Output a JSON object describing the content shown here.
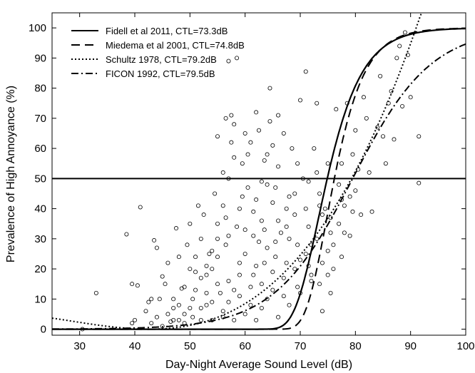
{
  "chart_data": {
    "type": "scatter",
    "xlabel": "Day-Night Average Sound Level (dB)",
    "ylabel": "Prevalence of High Annoyance (%)",
    "xlim": [
      25,
      100
    ],
    "ylim": [
      -2,
      105
    ],
    "x_ticks": [
      30,
      40,
      50,
      60,
      70,
      80,
      90,
      100
    ],
    "y_ticks": [
      0,
      10,
      20,
      30,
      40,
      50,
      60,
      70,
      80,
      90,
      100
    ],
    "grid": false,
    "legend_position": "top-left",
    "reference_line": {
      "y": 50
    },
    "curves": [
      {
        "name": "Fidell et al 2011, CTL=73.3dB",
        "style": "solid",
        "ctl": 73.3
      },
      {
        "name": "Miedema et al 2001, CTL=74.8dB",
        "style": "dashed",
        "ctl": 74.8
      },
      {
        "name": "Schultz 1978, CTL=79.2dB",
        "style": "dotted",
        "ctl": 79.2
      },
      {
        "name": "FICON 1992, CTL=79.5dB",
        "style": "dashdot",
        "ctl": 79.5
      }
    ],
    "scatter": [
      [
        30.5,
        0
      ],
      [
        33,
        12
      ],
      [
        38.5,
        31.5
      ],
      [
        39.5,
        15
      ],
      [
        41,
        40.5
      ],
      [
        40.5,
        14.5
      ],
      [
        42.5,
        9
      ],
      [
        43,
        10
      ],
      [
        43.5,
        29.5
      ],
      [
        44,
        27
      ],
      [
        44.5,
        10
      ],
      [
        45,
        17.5
      ],
      [
        45.5,
        15
      ],
      [
        46,
        22
      ],
      [
        46.5,
        2.5
      ],
      [
        47,
        10
      ],
      [
        47.5,
        33.5
      ],
      [
        48,
        24
      ],
      [
        48.5,
        13.5
      ],
      [
        49,
        5
      ],
      [
        49.5,
        28
      ],
      [
        50,
        35
      ],
      [
        50.5,
        10
      ],
      [
        51,
        19
      ],
      [
        51.5,
        41
      ],
      [
        52,
        30
      ],
      [
        52.5,
        38
      ],
      [
        53,
        8
      ],
      [
        53.5,
        25
      ],
      [
        54,
        20
      ],
      [
        54.5,
        45
      ],
      [
        55,
        64
      ],
      [
        55,
        35
      ],
      [
        55.5,
        12
      ],
      [
        56,
        52
      ],
      [
        56.5,
        70
      ],
      [
        56.5,
        28
      ],
      [
        57,
        89
      ],
      [
        57,
        16
      ],
      [
        57.5,
        71
      ],
      [
        58,
        68
      ],
      [
        58.5,
        90
      ],
      [
        59,
        40
      ],
      [
        59,
        22
      ],
      [
        59.5,
        55
      ],
      [
        60,
        33
      ],
      [
        60.5,
        47
      ],
      [
        61,
        62
      ],
      [
        61.5,
        18
      ],
      [
        62,
        72
      ],
      [
        62.5,
        29
      ],
      [
        63,
        36
      ],
      [
        63.5,
        56
      ],
      [
        64,
        48
      ],
      [
        64.5,
        80
      ],
      [
        65,
        42
      ],
      [
        65.5,
        24
      ],
      [
        66,
        54
      ],
      [
        66.5,
        32
      ],
      [
        67,
        65
      ],
      [
        67.5,
        22
      ],
      [
        68,
        44
      ],
      [
        68.5,
        60
      ],
      [
        69,
        38
      ],
      [
        69.5,
        14
      ],
      [
        70,
        76
      ],
      [
        70.5,
        50
      ],
      [
        71,
        85.5
      ],
      [
        71.5,
        34
      ],
      [
        72,
        28
      ],
      [
        72.5,
        60
      ],
      [
        73,
        75
      ],
      [
        73.5,
        45
      ],
      [
        74,
        6
      ],
      [
        74.5,
        40
      ],
      [
        75,
        55
      ],
      [
        75.5,
        32
      ],
      [
        76,
        20
      ],
      [
        76.5,
        73
      ],
      [
        77,
        48
      ],
      [
        77.5,
        55
      ],
      [
        78,
        32
      ],
      [
        78.5,
        75
      ],
      [
        79,
        44
      ],
      [
        79.5,
        58
      ],
      [
        80,
        66
      ],
      [
        80.5,
        53
      ],
      [
        81,
        38
      ],
      [
        81.5,
        77
      ],
      [
        82,
        70
      ],
      [
        82.5,
        52
      ],
      [
        83,
        39
      ],
      [
        84,
        67
      ],
      [
        84.5,
        84
      ],
      [
        85,
        64
      ],
      [
        85.5,
        55
      ],
      [
        86,
        75
      ],
      [
        86.5,
        79
      ],
      [
        87,
        63
      ],
      [
        87.5,
        90
      ],
      [
        88,
        94
      ],
      [
        88.5,
        74
      ],
      [
        89,
        98.5
      ],
      [
        89.5,
        91
      ],
      [
        90,
        77
      ],
      [
        91.5,
        48.5
      ],
      [
        91.5,
        64
      ],
      [
        50.5,
        4
      ],
      [
        52,
        7
      ],
      [
        53,
        12
      ],
      [
        54,
        3
      ],
      [
        55,
        15
      ],
      [
        56,
        6
      ],
      [
        57,
        9
      ],
      [
        58,
        3
      ],
      [
        59,
        11
      ],
      [
        60,
        5
      ],
      [
        61,
        14
      ],
      [
        62,
        3
      ],
      [
        63,
        7
      ],
      [
        64,
        10
      ],
      [
        65,
        13
      ],
      [
        66,
        4
      ],
      [
        67,
        17
      ],
      [
        68,
        8
      ],
      [
        69,
        20
      ],
      [
        70,
        12
      ],
      [
        71,
        25
      ],
      [
        72,
        16
      ],
      [
        73,
        30
      ],
      [
        74,
        22
      ],
      [
        75,
        18
      ],
      [
        76,
        28
      ],
      [
        77,
        35
      ],
      [
        78,
        41
      ],
      [
        79,
        31
      ],
      [
        80,
        46
      ],
      [
        46,
        5
      ],
      [
        47,
        3
      ],
      [
        48,
        8
      ],
      [
        49,
        2
      ],
      [
        50,
        7
      ],
      [
        51,
        13
      ],
      [
        52,
        3
      ],
      [
        53,
        18
      ],
      [
        54,
        9
      ],
      [
        55,
        24
      ],
      [
        56,
        4
      ],
      [
        57,
        31
      ],
      [
        58,
        13
      ],
      [
        59,
        18
      ],
      [
        60,
        25
      ],
      [
        61,
        8
      ],
      [
        62,
        21
      ],
      [
        63,
        15
      ],
      [
        64,
        27
      ],
      [
        65,
        19
      ],
      [
        66,
        36
      ],
      [
        67,
        11
      ],
      [
        68,
        30
      ],
      [
        69,
        45
      ],
      [
        70,
        23
      ],
      [
        71,
        40
      ],
      [
        72,
        18
      ],
      [
        73,
        52
      ],
      [
        74,
        38
      ],
      [
        75,
        26
      ],
      [
        62,
        43
      ],
      [
        63,
        49
      ],
      [
        64,
        58
      ],
      [
        65,
        61
      ],
      [
        66,
        71
      ],
      [
        60,
        65
      ],
      [
        58,
        57
      ],
      [
        57,
        50
      ],
      [
        56,
        41
      ],
      [
        55,
        30
      ],
      [
        54,
        26
      ],
      [
        53,
        21
      ],
      [
        52,
        17
      ],
      [
        51,
        24
      ],
      [
        50,
        20
      ],
      [
        49,
        14
      ],
      [
        48,
        3
      ],
      [
        47,
        7
      ],
      [
        45,
        1
      ],
      [
        44,
        4
      ],
      [
        43,
        2
      ],
      [
        42,
        6
      ],
      [
        40,
        3
      ],
      [
        39.5,
        2
      ],
      [
        56.5,
        37
      ],
      [
        58.5,
        34
      ],
      [
        61.5,
        31
      ],
      [
        63.5,
        22
      ],
      [
        65.5,
        29
      ],
      [
        67.5,
        34
      ],
      [
        69.5,
        28
      ],
      [
        71.5,
        21
      ],
      [
        73.5,
        15
      ],
      [
        75.5,
        12
      ],
      [
        77.5,
        24
      ],
      [
        79.5,
        39
      ],
      [
        60.5,
        58
      ],
      [
        62.5,
        66
      ],
      [
        64.5,
        69
      ],
      [
        57.5,
        62
      ],
      [
        59.5,
        44
      ],
      [
        61.5,
        39
      ],
      [
        63.5,
        33
      ],
      [
        65.5,
        47
      ],
      [
        67.5,
        40
      ],
      [
        69.5,
        55
      ],
      [
        71.5,
        49
      ],
      [
        73.5,
        41
      ],
      [
        75.5,
        37
      ],
      [
        77.5,
        43
      ]
    ]
  }
}
